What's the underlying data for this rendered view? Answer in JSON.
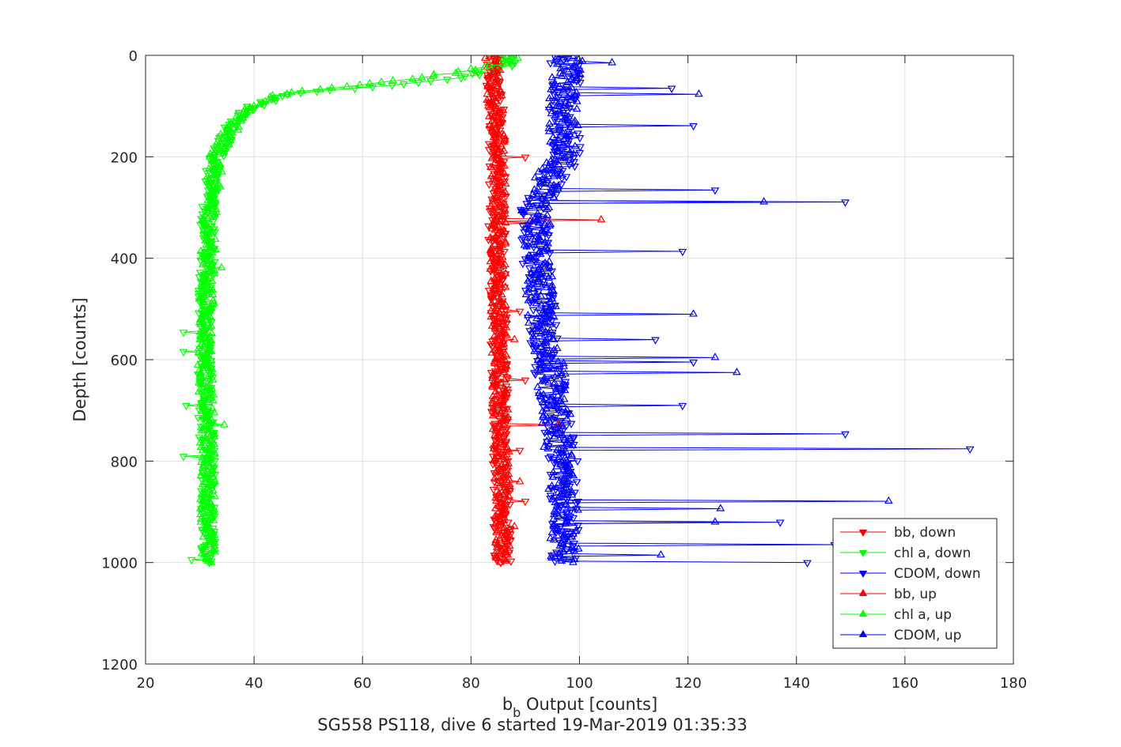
{
  "chart_data": {
    "type": "line",
    "subtitle": "SG558 PS118, dive 6 started 19-Mar-2019 01:35:33",
    "xlabel": {
      "main": "b",
      "subscript": "b",
      "rest": " Output [counts]"
    },
    "ylabel": "Depth [counts]",
    "xlim": [
      20,
      180
    ],
    "ylim": [
      0,
      1200
    ],
    "y_reversed": true,
    "grid": true,
    "legend_position": "bottom-right",
    "x_ticks": [
      20,
      40,
      60,
      80,
      100,
      120,
      140,
      160,
      180
    ],
    "y_ticks": [
      0,
      200,
      400,
      600,
      800,
      1000,
      1200
    ],
    "series": [
      {
        "name": "bb, down",
        "color": "#ff0000",
        "marker": "triangle-down",
        "profile": [
          [
            0,
            84
          ],
          [
            50,
            84
          ],
          [
            100,
            84.5
          ],
          [
            200,
            85
          ],
          [
            300,
            84.8
          ],
          [
            400,
            84.8
          ],
          [
            500,
            85
          ],
          [
            600,
            85.2
          ],
          [
            700,
            85.3
          ],
          [
            800,
            85.5
          ],
          [
            900,
            85.7
          ],
          [
            1000,
            85.8
          ]
        ],
        "spread": 1.6,
        "spikes": [
          [
            200,
            90
          ],
          [
            330,
            91
          ],
          [
            505,
            89
          ],
          [
            640,
            90
          ],
          [
            780,
            89
          ],
          [
            880,
            90
          ]
        ]
      },
      {
        "name": "chl a, down",
        "color": "#00ff00",
        "marker": "triangle-down",
        "profile": [
          [
            0,
            86
          ],
          [
            20,
            87
          ],
          [
            40,
            80
          ],
          [
            55,
            70
          ],
          [
            65,
            58
          ],
          [
            75,
            48
          ],
          [
            85,
            44
          ],
          [
            100,
            40
          ],
          [
            130,
            36.5
          ],
          [
            160,
            35
          ],
          [
            200,
            33
          ],
          [
            250,
            32
          ],
          [
            300,
            31.5
          ],
          [
            400,
            31.5
          ],
          [
            500,
            31
          ],
          [
            600,
            31
          ],
          [
            700,
            31
          ],
          [
            800,
            31.5
          ],
          [
            900,
            31.5
          ],
          [
            1000,
            31.5
          ]
        ],
        "spread": 1.4,
        "spikes": [
          [
            545,
            27
          ],
          [
            585,
            27
          ],
          [
            690,
            27.5
          ],
          [
            790,
            27
          ],
          [
            995,
            28.5
          ]
        ]
      },
      {
        "name": "CDOM, down",
        "color": "#0000ff",
        "marker": "triangle-down",
        "profile": [
          [
            0,
            97
          ],
          [
            50,
            98
          ],
          [
            100,
            97
          ],
          [
            150,
            97.5
          ],
          [
            200,
            98
          ],
          [
            250,
            95
          ],
          [
            300,
            92
          ],
          [
            400,
            92
          ],
          [
            500,
            93
          ],
          [
            600,
            94
          ],
          [
            700,
            95.5
          ],
          [
            800,
            97
          ],
          [
            900,
            97.5
          ],
          [
            1000,
            97
          ]
        ],
        "spread": 2.8,
        "spikes": [
          [
            65,
            117
          ],
          [
            140,
            121
          ],
          [
            265,
            125
          ],
          [
            290,
            149
          ],
          [
            385,
            119
          ],
          [
            560,
            114
          ],
          [
            605,
            121
          ],
          [
            690,
            119
          ],
          [
            745,
            149
          ],
          [
            775,
            172
          ],
          [
            920,
            137
          ],
          [
            965,
            147
          ],
          [
            1000,
            142
          ]
        ]
      },
      {
        "name": "bb, up",
        "color": "#ff0000",
        "marker": "triangle-up",
        "profile": [
          [
            0,
            84
          ],
          [
            100,
            84.5
          ],
          [
            200,
            85
          ],
          [
            400,
            85
          ],
          [
            600,
            85.3
          ],
          [
            800,
            85.6
          ],
          [
            1000,
            85.8
          ]
        ],
        "spread": 1.5,
        "spikes": [
          [
            325,
            104
          ],
          [
            560,
            88
          ],
          [
            730,
            96
          ],
          [
            840,
            89
          ],
          [
            930,
            88
          ]
        ]
      },
      {
        "name": "chl a, up",
        "color": "#00ff00",
        "marker": "triangle-up",
        "profile": [
          [
            0,
            88
          ],
          [
            15,
            86
          ],
          [
            30,
            80
          ],
          [
            45,
            70
          ],
          [
            55,
            62
          ],
          [
            62,
            56
          ],
          [
            75,
            46
          ],
          [
            90,
            42
          ],
          [
            110,
            38
          ],
          [
            150,
            35.5
          ],
          [
            200,
            33
          ],
          [
            300,
            32
          ],
          [
            400,
            31.5
          ],
          [
            600,
            31
          ],
          [
            800,
            31.5
          ],
          [
            1000,
            31.5
          ]
        ],
        "spread": 1.4,
        "spikes": [
          [
            730,
            34.5
          ],
          [
            420,
            34
          ]
        ]
      },
      {
        "name": "CDOM, up",
        "color": "#0000ff",
        "marker": "triangle-up",
        "profile": [
          [
            0,
            98
          ],
          [
            100,
            97
          ],
          [
            200,
            97
          ],
          [
            250,
            94
          ],
          [
            300,
            92
          ],
          [
            500,
            93
          ],
          [
            700,
            95.5
          ],
          [
            900,
            97.5
          ],
          [
            1000,
            97
          ]
        ],
        "spread": 2.8,
        "spikes": [
          [
            15,
            106
          ],
          [
            78,
            122
          ],
          [
            290,
            134
          ],
          [
            510,
            121
          ],
          [
            595,
            125
          ],
          [
            625,
            129
          ],
          [
            880,
            157
          ],
          [
            895,
            126
          ],
          [
            920,
            125
          ],
          [
            985,
            115
          ]
        ]
      }
    ],
    "points_per_series": 340
  }
}
